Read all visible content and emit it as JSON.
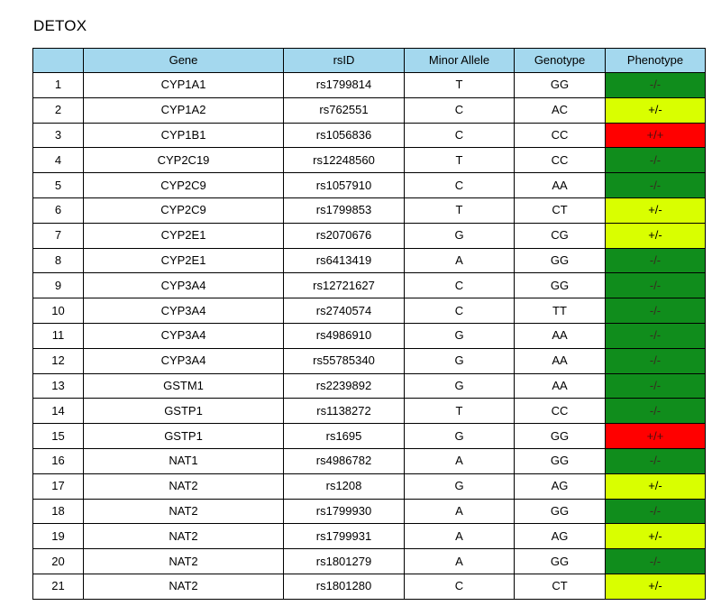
{
  "title": "DETOX",
  "colors": {
    "header_bg": "#a4d8ee",
    "phenotype_neg": "#108d1c",
    "phenotype_het": "#d9ff00",
    "phenotype_pos": "#ff0000"
  },
  "table": {
    "headers": [
      "",
      "Gene",
      "rsID",
      "Minor Allele",
      "Genotype",
      "Phenotype"
    ],
    "rows": [
      {
        "num": "1",
        "gene": "CYP1A1",
        "rsid": "rs1799814",
        "allele": "T",
        "genotype": "GG",
        "phenotype": "-/-",
        "level": "neg"
      },
      {
        "num": "2",
        "gene": "CYP1A2",
        "rsid": "rs762551",
        "allele": "C",
        "genotype": "AC",
        "phenotype": "+/-",
        "level": "het"
      },
      {
        "num": "3",
        "gene": "CYP1B1",
        "rsid": "rs1056836",
        "allele": "C",
        "genotype": "CC",
        "phenotype": "+/+",
        "level": "pos"
      },
      {
        "num": "4",
        "gene": "CYP2C19",
        "rsid": "rs12248560",
        "allele": "T",
        "genotype": "CC",
        "phenotype": "-/-",
        "level": "neg"
      },
      {
        "num": "5",
        "gene": "CYP2C9",
        "rsid": "rs1057910",
        "allele": "C",
        "genotype": "AA",
        "phenotype": "-/-",
        "level": "neg"
      },
      {
        "num": "6",
        "gene": "CYP2C9",
        "rsid": "rs1799853",
        "allele": "T",
        "genotype": "CT",
        "phenotype": "+/-",
        "level": "het"
      },
      {
        "num": "7",
        "gene": "CYP2E1",
        "rsid": "rs2070676",
        "allele": "G",
        "genotype": "CG",
        "phenotype": "+/-",
        "level": "het"
      },
      {
        "num": "8",
        "gene": "CYP2E1",
        "rsid": "rs6413419",
        "allele": "A",
        "genotype": "GG",
        "phenotype": "-/-",
        "level": "neg"
      },
      {
        "num": "9",
        "gene": "CYP3A4",
        "rsid": "rs12721627",
        "allele": "C",
        "genotype": "GG",
        "phenotype": "-/-",
        "level": "neg"
      },
      {
        "num": "10",
        "gene": "CYP3A4",
        "rsid": "rs2740574",
        "allele": "C",
        "genotype": "TT",
        "phenotype": "-/-",
        "level": "neg"
      },
      {
        "num": "11",
        "gene": "CYP3A4",
        "rsid": "rs4986910",
        "allele": "G",
        "genotype": "AA",
        "phenotype": "-/-",
        "level": "neg"
      },
      {
        "num": "12",
        "gene": "CYP3A4",
        "rsid": "rs55785340",
        "allele": "G",
        "genotype": "AA",
        "phenotype": "-/-",
        "level": "neg"
      },
      {
        "num": "13",
        "gene": "GSTM1",
        "rsid": "rs2239892",
        "allele": "G",
        "genotype": "AA",
        "phenotype": "-/-",
        "level": "neg"
      },
      {
        "num": "14",
        "gene": "GSTP1",
        "rsid": "rs1138272",
        "allele": "T",
        "genotype": "CC",
        "phenotype": "-/-",
        "level": "neg"
      },
      {
        "num": "15",
        "gene": "GSTP1",
        "rsid": "rs1695",
        "allele": "G",
        "genotype": "GG",
        "phenotype": "+/+",
        "level": "pos"
      },
      {
        "num": "16",
        "gene": "NAT1",
        "rsid": "rs4986782",
        "allele": "A",
        "genotype": "GG",
        "phenotype": "-/-",
        "level": "neg"
      },
      {
        "num": "17",
        "gene": "NAT2",
        "rsid": "rs1208",
        "allele": "G",
        "genotype": "AG",
        "phenotype": "+/-",
        "level": "het"
      },
      {
        "num": "18",
        "gene": "NAT2",
        "rsid": "rs1799930",
        "allele": "A",
        "genotype": "GG",
        "phenotype": "-/-",
        "level": "neg"
      },
      {
        "num": "19",
        "gene": "NAT2",
        "rsid": "rs1799931",
        "allele": "A",
        "genotype": "AG",
        "phenotype": "+/-",
        "level": "het"
      },
      {
        "num": "20",
        "gene": "NAT2",
        "rsid": "rs1801279",
        "allele": "A",
        "genotype": "GG",
        "phenotype": "-/-",
        "level": "neg"
      },
      {
        "num": "21",
        "gene": "NAT2",
        "rsid": "rs1801280",
        "allele": "C",
        "genotype": "CT",
        "phenotype": "+/-",
        "level": "het"
      }
    ]
  }
}
